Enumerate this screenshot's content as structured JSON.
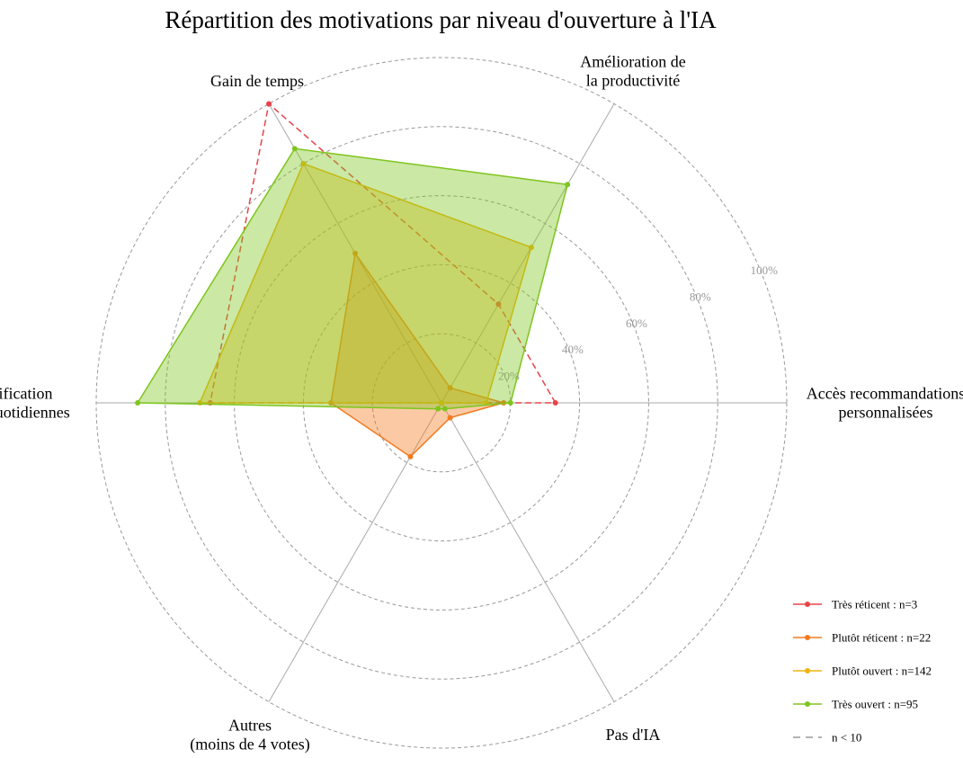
{
  "chart_data": {
    "type": "radar",
    "title": "Répartition des motivations par niveau d'ouverture à l'IA",
    "axes": [
      [
        "Accès recommandations",
        "personnalisées"
      ],
      [
        "Amélioration de",
        "la productivité"
      ],
      [
        "Gain de temps"
      ],
      [
        "Simplification",
        "tâches quotidiennes"
      ],
      [
        "Autres",
        "(moins de 4 votes)"
      ],
      [
        "Pas d'IA"
      ]
    ],
    "rlim": [
      0,
      100
    ],
    "rticks": [
      20,
      40,
      60,
      80,
      100
    ],
    "rtick_labels": [
      "20%",
      "40%",
      "60%",
      "80%",
      "100%"
    ],
    "grid": true,
    "legend_position": "bottom-right",
    "series": [
      {
        "name": "Très réticent : n=3",
        "color": "#e8434a",
        "values": [
          33,
          33,
          100,
          67,
          0,
          0
        ],
        "dashed": true,
        "filled": false
      },
      {
        "name": "Plutôt réticent : n=22",
        "color": "#f47a1f",
        "values": [
          18,
          5,
          50,
          32,
          18,
          5
        ],
        "dashed": false,
        "filled": true
      },
      {
        "name": "Plutôt ouvert : n=142",
        "color": "#f0b40f",
        "values": [
          13,
          52,
          80,
          70,
          0,
          0
        ],
        "dashed": false,
        "filled": true
      },
      {
        "name": "Très ouvert : n=95",
        "color": "#7ec51d",
        "values": [
          20,
          73,
          85,
          88,
          2,
          2
        ],
        "dashed": false,
        "filled": true
      }
    ],
    "note_legend": "n < 10"
  }
}
